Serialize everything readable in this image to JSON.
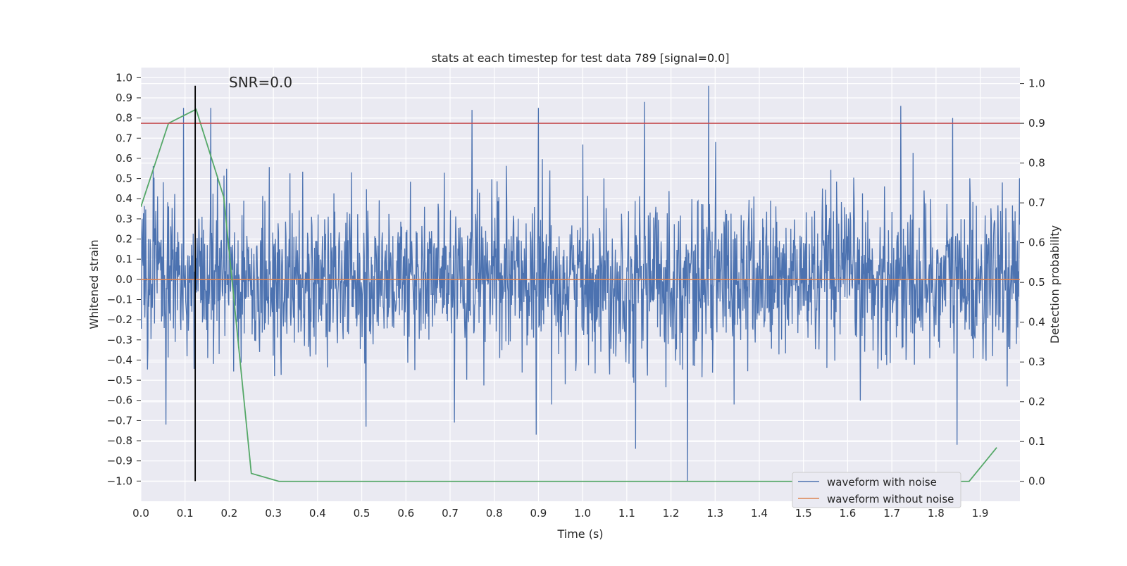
{
  "chart_data": {
    "type": "line",
    "title": "stats at each timestep for test data 789 [signal=0.0]",
    "annotation": "SNR=0.0",
    "xlabel": "Time (s)",
    "ylabel": "Whitened strain",
    "y2label": "Detection probability",
    "xlim": [
      0.0,
      1.99
    ],
    "ylim": [
      -1.1,
      1.05
    ],
    "y2lim": [
      -0.05,
      1.04
    ],
    "x_ticks": [
      "0.0",
      "0.1",
      "0.2",
      "0.3",
      "0.4",
      "0.5",
      "0.6",
      "0.7",
      "0.8",
      "0.9",
      "1.0",
      "1.1",
      "1.2",
      "1.3",
      "1.4",
      "1.5",
      "1.6",
      "1.7",
      "1.8",
      "1.9"
    ],
    "y_ticks": [
      "−1.0",
      "−0.9",
      "−0.8",
      "−0.7",
      "−0.6",
      "−0.5",
      "−0.4",
      "−0.3",
      "−0.2",
      "−0.1",
      "0.0",
      "0.1",
      "0.2",
      "0.3",
      "0.4",
      "0.5",
      "0.6",
      "0.7",
      "0.8",
      "0.9",
      "1.0"
    ],
    "y2_ticks": [
      "0.0",
      "0.1",
      "0.2",
      "0.3",
      "0.4",
      "0.5",
      "0.6",
      "0.7",
      "0.8",
      "0.9",
      "1.0"
    ],
    "grid": true,
    "legend_position": "bottom-right",
    "series": [
      {
        "name": "waveform with noise",
        "axis": "left",
        "color": "#4c72b0",
        "note": "noisy signal, approx. 2000 samples across 0–1.99 s, mostly within ±0.5",
        "x_range": [
          0.0,
          1.99
        ],
        "peaks": [
          {
            "x": 0.097,
            "y": 0.85
          },
          {
            "x": 0.158,
            "y": 0.85
          },
          {
            "x": 0.75,
            "y": 0.84
          },
          {
            "x": 0.9,
            "y": 0.85
          },
          {
            "x": 1.14,
            "y": 0.88
          },
          {
            "x": 1.285,
            "y": 0.96
          },
          {
            "x": 1.72,
            "y": 0.86
          },
          {
            "x": 1.838,
            "y": 0.8
          }
        ],
        "troughs": [
          {
            "x": 0.057,
            "y": -0.72
          },
          {
            "x": 0.51,
            "y": -0.73
          },
          {
            "x": 0.71,
            "y": -0.71
          },
          {
            "x": 0.895,
            "y": -0.77
          },
          {
            "x": 1.12,
            "y": -0.84
          },
          {
            "x": 1.237,
            "y": -1.0
          },
          {
            "x": 1.848,
            "y": -0.82
          }
        ]
      },
      {
        "name": "waveform without noise",
        "axis": "left",
        "color": "#dd8452",
        "x": [
          0.0,
          1.99
        ],
        "y": [
          0.0,
          0.0
        ]
      },
      {
        "axis": "right",
        "color": "#55a868",
        "x": [
          0.0,
          0.0625,
          0.125,
          0.1875,
          0.25,
          0.3125,
          0.375,
          0.5,
          0.75,
          1.0,
          1.25,
          1.5,
          1.75,
          1.875,
          1.9375
        ],
        "y": [
          0.69,
          0.9,
          0.935,
          0.715,
          0.02,
          0.0,
          0.0,
          0.0,
          0.0,
          0.0,
          0.0,
          0.0,
          0.0,
          0.0,
          0.085
        ]
      }
    ],
    "hlines": [
      {
        "axis": "right",
        "y": 0.9,
        "color": "#c44e52"
      }
    ],
    "vlines": [
      {
        "axis": "left",
        "x": 0.123,
        "ymin": -1.0,
        "ymax": 0.96,
        "color": "#000000"
      }
    ],
    "legend": [
      "waveform with noise",
      "waveform without noise"
    ]
  }
}
